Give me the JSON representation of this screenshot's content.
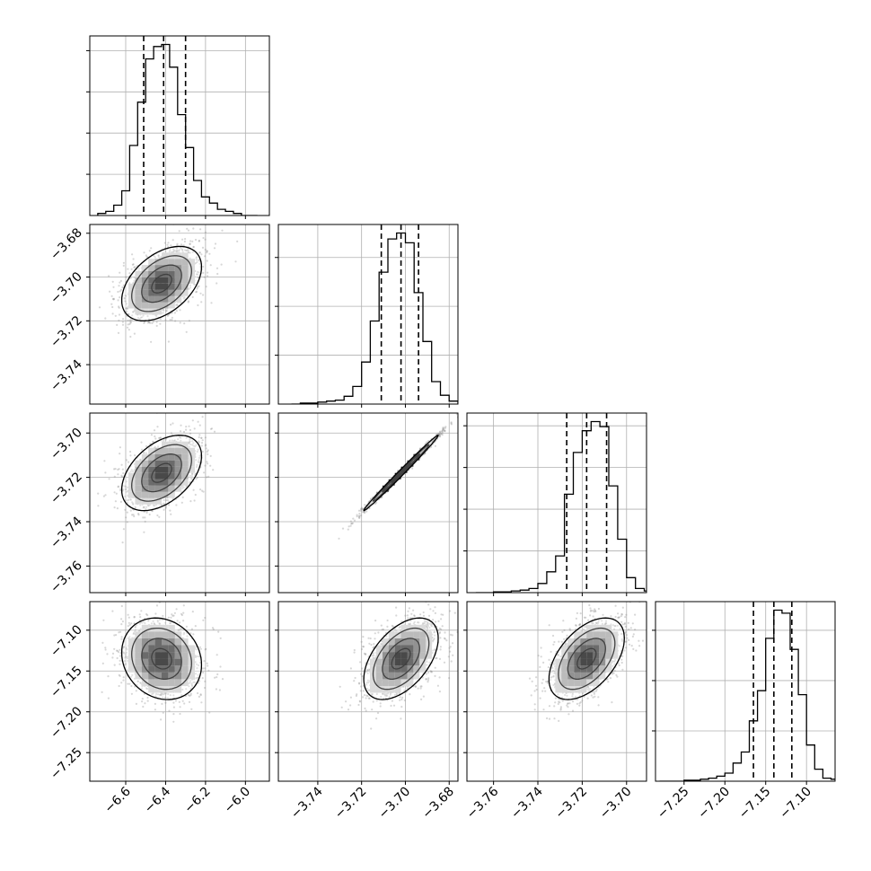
{
  "chart_data": [
    {
      "type": "histogram",
      "row": 0,
      "col": 0,
      "param": 0,
      "xlim": [
        -6.78,
        -5.88
      ],
      "grid": true,
      "bins": [
        -6.74,
        -6.7,
        -6.66,
        -6.62,
        -6.58,
        -6.54,
        -6.5,
        -6.46,
        -6.42,
        -6.38,
        -6.34,
        -6.3,
        -6.26,
        -6.22,
        -6.18,
        -6.14,
        -6.1,
        -6.06,
        -6.02,
        -5.98
      ],
      "counts": [
        1,
        2,
        5,
        12,
        34,
        55,
        76,
        82,
        83,
        72,
        49,
        33,
        17,
        9,
        6,
        3,
        2,
        1,
        0,
        0
      ],
      "quantiles": [
        -6.51,
        -6.41,
        -6.3
      ]
    },
    {
      "type": "scatter-contour",
      "row": 1,
      "col": 0,
      "xparam": 0,
      "yparam": 1,
      "xlim": [
        -6.78,
        -5.88
      ],
      "ylim": [
        -3.758,
        -3.676
      ],
      "grid": true,
      "center": [
        -6.42,
        -3.703
      ],
      "spread": [
        0.1,
        0.0085
      ],
      "correlation": 0.45,
      "yticks": [
        -3.68,
        -3.7,
        -3.72,
        -3.74
      ]
    },
    {
      "type": "histogram",
      "row": 1,
      "col": 1,
      "param": 1,
      "xlim": [
        -3.758,
        -3.676
      ],
      "grid": true,
      "bins": [
        -3.752,
        -3.748,
        -3.744,
        -3.74,
        -3.736,
        -3.732,
        -3.728,
        -3.724,
        -3.72,
        -3.716,
        -3.712,
        -3.708,
        -3.704,
        -3.7,
        -3.696,
        -3.692,
        -3.688,
        -3.684,
        -3.68
      ],
      "counts": [
        0,
        1,
        1,
        2,
        3,
        4,
        8,
        18,
        43,
        85,
        135,
        169,
        175,
        165,
        114,
        64,
        23,
        9,
        3
      ],
      "quantiles": [
        -3.711,
        -3.702,
        -3.694
      ]
    },
    {
      "type": "scatter-contour",
      "row": 2,
      "col": 0,
      "xparam": 0,
      "yparam": 2,
      "xlim": [
        -6.78,
        -5.88
      ],
      "ylim": [
        -3.772,
        -3.691
      ],
      "grid": true,
      "center": [
        -6.42,
        -3.718
      ],
      "spread": [
        0.1,
        0.0085
      ],
      "correlation": 0.45,
      "yticks": [
        -3.7,
        -3.72,
        -3.74,
        -3.76
      ]
    },
    {
      "type": "scatter-contour",
      "row": 2,
      "col": 1,
      "xparam": 1,
      "yparam": 2,
      "xlim": [
        -3.758,
        -3.676
      ],
      "ylim": [
        -3.772,
        -3.691
      ],
      "grid": true,
      "center": [
        -3.702,
        -3.718
      ],
      "spread": [
        0.0085,
        0.0085
      ],
      "correlation": 0.995
    },
    {
      "type": "histogram",
      "row": 2,
      "col": 2,
      "param": 2,
      "xlim": [
        -3.772,
        -3.691
      ],
      "grid": true,
      "bins": [
        -3.768,
        -3.764,
        -3.76,
        -3.756,
        -3.752,
        -3.748,
        -3.744,
        -3.74,
        -3.736,
        -3.732,
        -3.728,
        -3.724,
        -3.72,
        -3.716,
        -3.712,
        -3.708,
        -3.704,
        -3.7,
        -3.696,
        -3.692
      ],
      "counts": [
        0,
        0,
        1,
        1,
        2,
        3,
        5,
        11,
        25,
        44,
        118,
        168,
        194,
        205,
        199,
        128,
        64,
        18,
        5,
        2
      ],
      "quantiles": [
        -3.727,
        -3.718,
        -3.709
      ]
    },
    {
      "type": "scatter-contour",
      "row": 3,
      "col": 0,
      "xparam": 0,
      "yparam": 3,
      "xlim": [
        -6.78,
        -5.88
      ],
      "ylim": [
        -7.285,
        -7.065
      ],
      "grid": true,
      "center": [
        -6.42,
        -7.135
      ],
      "spread": [
        0.1,
        0.025
      ],
      "correlation": -0.15,
      "yticks": [
        -7.1,
        -7.15,
        -7.2,
        -7.25
      ],
      "xticks": [
        -6.6,
        -6.4,
        -6.2,
        -6.0
      ]
    },
    {
      "type": "scatter-contour",
      "row": 3,
      "col": 1,
      "xparam": 1,
      "yparam": 3,
      "xlim": [
        -3.758,
        -3.676
      ],
      "ylim": [
        -7.285,
        -7.065
      ],
      "grid": true,
      "center": [
        -3.702,
        -7.135
      ],
      "spread": [
        0.0085,
        0.025
      ],
      "correlation": 0.5,
      "xticks": [
        -3.74,
        -3.72,
        -3.7,
        -3.68
      ]
    },
    {
      "type": "scatter-contour",
      "row": 3,
      "col": 2,
      "xparam": 2,
      "yparam": 3,
      "xlim": [
        -3.772,
        -3.691
      ],
      "ylim": [
        -7.285,
        -7.065
      ],
      "grid": true,
      "center": [
        -3.718,
        -7.135
      ],
      "spread": [
        0.0085,
        0.025
      ],
      "correlation": 0.5,
      "xticks": [
        -3.76,
        -3.74,
        -3.72,
        -3.7
      ]
    },
    {
      "type": "histogram",
      "row": 3,
      "col": 3,
      "param": 3,
      "xlim": [
        -7.285,
        -7.065
      ],
      "grid": true,
      "bins": [
        -7.28,
        -7.27,
        -7.26,
        -7.25,
        -7.24,
        -7.23,
        -7.22,
        -7.21,
        -7.2,
        -7.19,
        -7.18,
        -7.17,
        -7.16,
        -7.15,
        -7.14,
        -7.13,
        -7.12,
        -7.11,
        -7.1,
        -7.09,
        -7.08,
        -7.07
      ],
      "counts": [
        0,
        0,
        0,
        1,
        1,
        2,
        3,
        5,
        8,
        18,
        29,
        60,
        90,
        142,
        170,
        167,
        131,
        86,
        36,
        12,
        3,
        2
      ],
      "quantiles": [
        -7.165,
        -7.14,
        -7.118
      ],
      "xticks": [
        -7.25,
        -7.2,
        -7.15,
        -7.1
      ]
    }
  ]
}
